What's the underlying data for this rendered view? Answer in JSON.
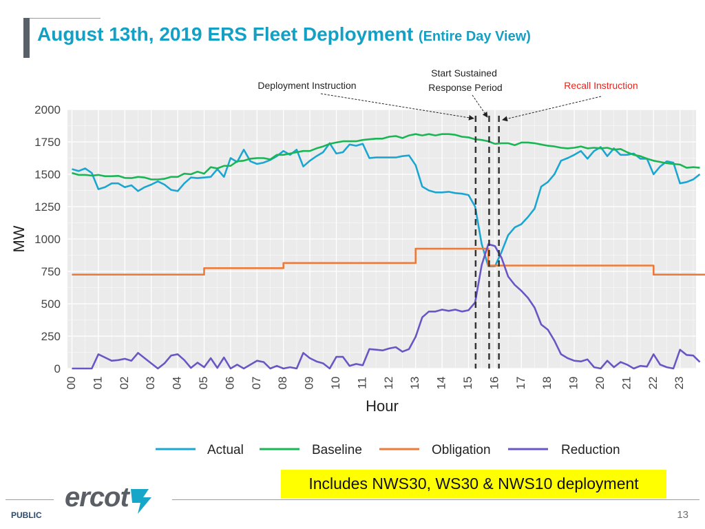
{
  "page": {
    "title": "August 13th, 2019 ERS Fleet Deployment",
    "title_sub": "(Entire Day View)",
    "highlight_note": "Includes NWS30, WS30 & NWS10 deployment",
    "footer_label": "PUBLIC",
    "page_number": "13",
    "logo_text": "ercot"
  },
  "annotations": {
    "deployment": "Deployment Instruction",
    "sustained_line1": "Start Sustained",
    "sustained_line2": "Response Period",
    "recall": "Recall Instruction"
  },
  "colors": {
    "title": "#13a0c4",
    "actual": "#1aa6d1",
    "baseline": "#1ab554",
    "obligation": "#ec7a3a",
    "reduction": "#6a55c4",
    "recall_text": "#e8241c"
  },
  "chart_data": {
    "type": "line",
    "title": "",
    "xlabel": "Hour",
    "ylabel": "MW",
    "xlim": [
      0,
      24
    ],
    "ylim": [
      0,
      2000
    ],
    "yticks": [
      0,
      250,
      500,
      750,
      1000,
      1250,
      1500,
      1750,
      2000
    ],
    "xticks": [
      "00",
      "01",
      "02",
      "03",
      "04",
      "05",
      "06",
      "07",
      "08",
      "09",
      "10",
      "11",
      "12",
      "13",
      "14",
      "15",
      "16",
      "17",
      "18",
      "19",
      "20",
      "21",
      "22",
      "23"
    ],
    "event_lines_hour": [
      15.27,
      15.78,
      16.15
    ],
    "series": [
      {
        "name": "Actual",
        "color": "#1aa6d1",
        "points": [
          [
            0,
            1540
          ],
          [
            0.25,
            1525
          ],
          [
            0.5,
            1545
          ],
          [
            0.75,
            1510
          ],
          [
            1.0,
            1385
          ],
          [
            1.25,
            1400
          ],
          [
            1.5,
            1430
          ],
          [
            1.75,
            1430
          ],
          [
            2.0,
            1400
          ],
          [
            2.25,
            1415
          ],
          [
            2.5,
            1370
          ],
          [
            2.75,
            1400
          ],
          [
            3.0,
            1420
          ],
          [
            3.25,
            1445
          ],
          [
            3.5,
            1420
          ],
          [
            3.75,
            1380
          ],
          [
            4.0,
            1370
          ],
          [
            4.25,
            1430
          ],
          [
            4.5,
            1475
          ],
          [
            4.75,
            1470
          ],
          [
            5.0,
            1475
          ],
          [
            5.25,
            1480
          ],
          [
            5.5,
            1540
          ],
          [
            5.75,
            1480
          ],
          [
            6.0,
            1625
          ],
          [
            6.25,
            1595
          ],
          [
            6.5,
            1690
          ],
          [
            6.75,
            1600
          ],
          [
            7.0,
            1580
          ],
          [
            7.25,
            1590
          ],
          [
            7.5,
            1610
          ],
          [
            7.75,
            1640
          ],
          [
            8.0,
            1680
          ],
          [
            8.25,
            1650
          ],
          [
            8.5,
            1690
          ],
          [
            8.75,
            1560
          ],
          [
            9.0,
            1605
          ],
          [
            9.25,
            1640
          ],
          [
            9.5,
            1670
          ],
          [
            9.75,
            1740
          ],
          [
            10.0,
            1660
          ],
          [
            10.25,
            1670
          ],
          [
            10.5,
            1730
          ],
          [
            10.75,
            1720
          ],
          [
            11.0,
            1735
          ],
          [
            11.25,
            1625
          ],
          [
            11.5,
            1630
          ],
          [
            11.75,
            1630
          ],
          [
            12.0,
            1630
          ],
          [
            12.25,
            1630
          ],
          [
            12.5,
            1640
          ],
          [
            12.75,
            1645
          ],
          [
            13.0,
            1570
          ],
          [
            13.25,
            1405
          ],
          [
            13.5,
            1375
          ],
          [
            13.75,
            1360
          ],
          [
            14.0,
            1360
          ],
          [
            14.25,
            1365
          ],
          [
            14.5,
            1355
          ],
          [
            14.75,
            1350
          ],
          [
            15.0,
            1340
          ],
          [
            15.25,
            1250
          ],
          [
            15.5,
            960
          ],
          [
            15.75,
            790
          ],
          [
            16.0,
            790
          ],
          [
            16.25,
            900
          ],
          [
            16.5,
            1030
          ],
          [
            16.75,
            1090
          ],
          [
            17.0,
            1115
          ],
          [
            17.25,
            1170
          ],
          [
            17.5,
            1235
          ],
          [
            17.75,
            1405
          ],
          [
            18.0,
            1440
          ],
          [
            18.25,
            1500
          ],
          [
            18.5,
            1605
          ],
          [
            18.75,
            1625
          ],
          [
            19.0,
            1650
          ],
          [
            19.25,
            1680
          ],
          [
            19.5,
            1620
          ],
          [
            19.75,
            1680
          ],
          [
            20.0,
            1710
          ],
          [
            20.25,
            1640
          ],
          [
            20.5,
            1700
          ],
          [
            20.75,
            1650
          ],
          [
            21.0,
            1650
          ],
          [
            21.25,
            1660
          ],
          [
            21.5,
            1620
          ],
          [
            21.75,
            1620
          ],
          [
            22.0,
            1500
          ],
          [
            22.25,
            1560
          ],
          [
            22.5,
            1600
          ],
          [
            22.75,
            1590
          ],
          [
            23.0,
            1430
          ],
          [
            23.25,
            1440
          ],
          [
            23.5,
            1460
          ],
          [
            23.75,
            1500
          ]
        ]
      },
      {
        "name": "Baseline",
        "color": "#1ab554",
        "points": [
          [
            0,
            1510
          ],
          [
            0.25,
            1495
          ],
          [
            0.5,
            1495
          ],
          [
            0.75,
            1490
          ],
          [
            1.0,
            1495
          ],
          [
            1.25,
            1485
          ],
          [
            1.5,
            1485
          ],
          [
            1.75,
            1488
          ],
          [
            2.0,
            1472
          ],
          [
            2.25,
            1470
          ],
          [
            2.5,
            1480
          ],
          [
            2.75,
            1475
          ],
          [
            3.0,
            1460
          ],
          [
            3.25,
            1460
          ],
          [
            3.5,
            1465
          ],
          [
            3.75,
            1480
          ],
          [
            4.0,
            1480
          ],
          [
            4.25,
            1505
          ],
          [
            4.5,
            1500
          ],
          [
            4.75,
            1520
          ],
          [
            5.0,
            1505
          ],
          [
            5.25,
            1555
          ],
          [
            5.5,
            1545
          ],
          [
            5.75,
            1565
          ],
          [
            6.0,
            1565
          ],
          [
            6.25,
            1600
          ],
          [
            6.5,
            1605
          ],
          [
            6.75,
            1620
          ],
          [
            7.0,
            1625
          ],
          [
            7.25,
            1625
          ],
          [
            7.5,
            1615
          ],
          [
            7.75,
            1650
          ],
          [
            8.0,
            1650
          ],
          [
            8.25,
            1660
          ],
          [
            8.5,
            1670
          ],
          [
            8.75,
            1680
          ],
          [
            9.0,
            1680
          ],
          [
            9.25,
            1700
          ],
          [
            9.5,
            1715
          ],
          [
            9.75,
            1735
          ],
          [
            10.0,
            1745
          ],
          [
            10.25,
            1755
          ],
          [
            10.5,
            1755
          ],
          [
            10.75,
            1755
          ],
          [
            11.0,
            1765
          ],
          [
            11.25,
            1770
          ],
          [
            11.5,
            1775
          ],
          [
            11.75,
            1775
          ],
          [
            12.0,
            1790
          ],
          [
            12.25,
            1795
          ],
          [
            12.5,
            1780
          ],
          [
            12.75,
            1800
          ],
          [
            13.0,
            1810
          ],
          [
            13.25,
            1800
          ],
          [
            13.5,
            1810
          ],
          [
            13.75,
            1800
          ],
          [
            14.0,
            1810
          ],
          [
            14.25,
            1810
          ],
          [
            14.5,
            1805
          ],
          [
            14.75,
            1790
          ],
          [
            15.0,
            1785
          ],
          [
            15.25,
            1770
          ],
          [
            15.5,
            1765
          ],
          [
            15.75,
            1755
          ],
          [
            16.0,
            1735
          ],
          [
            16.25,
            1740
          ],
          [
            16.5,
            1740
          ],
          [
            16.75,
            1725
          ],
          [
            17.0,
            1745
          ],
          [
            17.25,
            1745
          ],
          [
            17.5,
            1740
          ],
          [
            17.75,
            1730
          ],
          [
            18.0,
            1720
          ],
          [
            18.25,
            1715
          ],
          [
            18.5,
            1705
          ],
          [
            18.75,
            1700
          ],
          [
            19.0,
            1705
          ],
          [
            19.25,
            1715
          ],
          [
            19.5,
            1700
          ],
          [
            19.75,
            1705
          ],
          [
            20.0,
            1700
          ],
          [
            20.25,
            1705
          ],
          [
            20.5,
            1690
          ],
          [
            20.75,
            1695
          ],
          [
            21.0,
            1670
          ],
          [
            21.25,
            1650
          ],
          [
            21.5,
            1640
          ],
          [
            21.75,
            1620
          ],
          [
            22.0,
            1605
          ],
          [
            22.25,
            1595
          ],
          [
            22.5,
            1585
          ],
          [
            22.75,
            1580
          ],
          [
            23.0,
            1575
          ],
          [
            23.25,
            1550
          ],
          [
            23.5,
            1555
          ],
          [
            23.75,
            1550
          ]
        ]
      },
      {
        "name": "Obligation",
        "color": "#ec7a3a",
        "points": [
          [
            0,
            725
          ],
          [
            5,
            725
          ],
          [
            5,
            775
          ],
          [
            8,
            775
          ],
          [
            8,
            815
          ],
          [
            13,
            815
          ],
          [
            13,
            925
          ],
          [
            15.75,
            925
          ],
          [
            15.75,
            795
          ],
          [
            22,
            795
          ],
          [
            22,
            725
          ],
          [
            23.95,
            725
          ]
        ]
      },
      {
        "name": "Reduction",
        "color": "#6a55c4",
        "points": [
          [
            0,
            0
          ],
          [
            0.75,
            0
          ],
          [
            1.0,
            110
          ],
          [
            1.25,
            85
          ],
          [
            1.5,
            60
          ],
          [
            1.75,
            65
          ],
          [
            2.0,
            75
          ],
          [
            2.25,
            60
          ],
          [
            2.5,
            120
          ],
          [
            2.75,
            80
          ],
          [
            3.0,
            40
          ],
          [
            3.25,
            0
          ],
          [
            3.5,
            40
          ],
          [
            3.75,
            100
          ],
          [
            4.0,
            110
          ],
          [
            4.25,
            65
          ],
          [
            4.5,
            5
          ],
          [
            4.75,
            45
          ],
          [
            5.0,
            10
          ],
          [
            5.25,
            80
          ],
          [
            5.5,
            5
          ],
          [
            5.75,
            85
          ],
          [
            6.0,
            0
          ],
          [
            6.25,
            30
          ],
          [
            6.5,
            0
          ],
          [
            6.75,
            30
          ],
          [
            7.0,
            60
          ],
          [
            7.25,
            50
          ],
          [
            7.5,
            0
          ],
          [
            7.75,
            20
          ],
          [
            8.0,
            0
          ],
          [
            8.25,
            10
          ],
          [
            8.5,
            0
          ],
          [
            8.75,
            120
          ],
          [
            9.0,
            80
          ],
          [
            9.25,
            55
          ],
          [
            9.5,
            40
          ],
          [
            9.75,
            0
          ],
          [
            10.0,
            90
          ],
          [
            10.25,
            90
          ],
          [
            10.5,
            20
          ],
          [
            10.75,
            35
          ],
          [
            11.0,
            25
          ],
          [
            11.25,
            150
          ],
          [
            11.5,
            145
          ],
          [
            11.75,
            140
          ],
          [
            12.0,
            155
          ],
          [
            12.25,
            165
          ],
          [
            12.5,
            130
          ],
          [
            12.75,
            150
          ],
          [
            13.0,
            245
          ],
          [
            13.25,
            395
          ],
          [
            13.5,
            440
          ],
          [
            13.75,
            440
          ],
          [
            14.0,
            455
          ],
          [
            14.25,
            445
          ],
          [
            14.5,
            455
          ],
          [
            14.75,
            440
          ],
          [
            15.0,
            450
          ],
          [
            15.25,
            510
          ],
          [
            15.5,
            800
          ],
          [
            15.75,
            960
          ],
          [
            16.0,
            945
          ],
          [
            16.25,
            855
          ],
          [
            16.5,
            710
          ],
          [
            16.75,
            645
          ],
          [
            17.0,
            600
          ],
          [
            17.25,
            545
          ],
          [
            17.5,
            470
          ],
          [
            17.75,
            340
          ],
          [
            18.0,
            300
          ],
          [
            18.25,
            215
          ],
          [
            18.5,
            110
          ],
          [
            18.75,
            80
          ],
          [
            19.0,
            60
          ],
          [
            19.25,
            55
          ],
          [
            19.5,
            70
          ],
          [
            19.75,
            10
          ],
          [
            20.0,
            0
          ],
          [
            20.25,
            60
          ],
          [
            20.5,
            10
          ],
          [
            20.75,
            50
          ],
          [
            21.0,
            30
          ],
          [
            21.25,
            0
          ],
          [
            21.5,
            20
          ],
          [
            21.75,
            15
          ],
          [
            22.0,
            110
          ],
          [
            22.25,
            30
          ],
          [
            22.5,
            10
          ],
          [
            22.75,
            0
          ],
          [
            23.0,
            145
          ],
          [
            23.25,
            105
          ],
          [
            23.5,
            100
          ],
          [
            23.75,
            50
          ]
        ]
      }
    ]
  }
}
